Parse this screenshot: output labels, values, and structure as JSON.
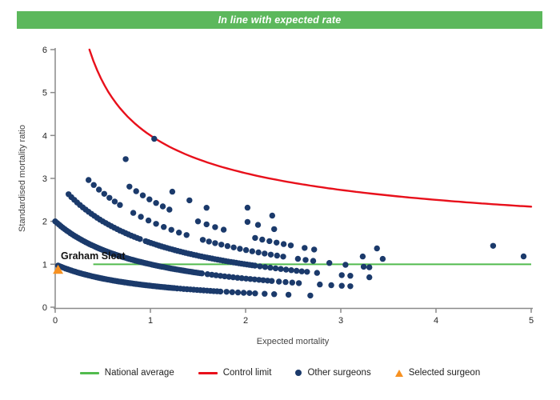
{
  "banner": {
    "text": "In line with expected rate",
    "bg": "#5cb85c",
    "text_color": "#ffffff"
  },
  "colors": {
    "navy_points": "#1b3a6b",
    "control_limit_red": "#e8101b",
    "national_average_green": "#52bb4e",
    "banner_green": "#5cb85c",
    "selected_orange": "#f79121",
    "axis_gray": "#8a8a8a"
  },
  "legend": {
    "items": [
      {
        "label": "National average",
        "type": "line",
        "color": "#52bb4e"
      },
      {
        "label": "Control limit",
        "type": "line",
        "color": "#e8101b"
      },
      {
        "label": "Other surgeons",
        "type": "dot",
        "color": "#1b3a6b"
      },
      {
        "label": "Selected surgeon",
        "type": "triangle",
        "color": "#f79121"
      }
    ]
  },
  "chart_data": {
    "type": "scatter",
    "title": "In line with expected rate",
    "xlabel": "Expected mortality",
    "ylabel": "Standardised mortality ratio",
    "xlim": [
      0,
      5
    ],
    "ylim": [
      0,
      6
    ],
    "xticks": [
      0,
      1,
      2,
      3,
      4,
      5
    ],
    "yticks": [
      0,
      1,
      2,
      3,
      4,
      5,
      6
    ],
    "grid": false,
    "legend_position": "bottom",
    "national_average": {
      "y": 1,
      "x_start": 0.4,
      "x_end": 5
    },
    "control_limit": {
      "formula": "y = 1 + 3/sqrt(x)",
      "offset": 1,
      "coefficient": 3,
      "x_start": 0.36,
      "x_end": 5
    },
    "selected_surgeon": {
      "label": "Graham Sleat",
      "x": 0.03,
      "y": 0.88
    },
    "band_formula": "y = deaths / (1 + x)",
    "point_radius": 3.7,
    "surgeon_bands": [
      {
        "deaths": 1,
        "runs": [
          {
            "from": 0.03,
            "to": 1.25,
            "step": 0.02
          },
          {
            "from": 1.28,
            "to": 1.75,
            "step": 0.035
          },
          {
            "from": 1.8,
            "to": 2.1,
            "step": 0.06
          }
        ],
        "extra": [
          2.2,
          2.3,
          2.45,
          2.68
        ]
      },
      {
        "deaths": 2,
        "runs": [
          {
            "from": 0.0,
            "to": 1.55,
            "step": 0.02
          },
          {
            "from": 1.6,
            "to": 2.3,
            "step": 0.045
          },
          {
            "from": 2.35,
            "to": 2.6,
            "step": 0.07
          }
        ],
        "extra": [
          2.78,
          2.9,
          3.01,
          3.1
        ]
      },
      {
        "deaths": 3,
        "runs": [
          {
            "from": 0.14,
            "to": 0.9,
            "step": 0.03
          },
          {
            "from": 0.95,
            "to": 2.1,
            "step": 0.028
          },
          {
            "from": 2.15,
            "to": 2.65,
            "step": 0.055
          }
        ],
        "extra": [
          2.75,
          3.01,
          3.1,
          3.3
        ]
      },
      {
        "deaths": 4,
        "runs": [
          {
            "from": 0.35,
            "to": 0.68,
            "step": 0.055
          },
          {
            "from": 0.82,
            "to": 1.45,
            "step": 0.08
          },
          {
            "from": 1.55,
            "to": 2.45,
            "step": 0.065
          },
          {
            "from": 2.55,
            "to": 2.72,
            "step": 0.08
          }
        ],
        "extra": [
          2.88,
          3.05,
          3.24,
          3.3
        ]
      },
      {
        "deaths": 5,
        "runs": [
          {
            "from": 0.78,
            "to": 1.2,
            "step": 0.07
          },
          {
            "from": 1.5,
            "to": 1.8,
            "step": 0.09
          },
          {
            "from": 2.1,
            "to": 2.5,
            "step": 0.075
          }
        ],
        "extra": [
          2.62,
          2.72,
          3.23,
          3.44
        ]
      },
      {
        "deaths": 6,
        "runs": [
          {
            "from": 1.23,
            "to": 1.62,
            "step": 0.18
          }
        ],
        "extra": [
          0.74,
          2.02,
          2.13,
          2.3,
          3.38
        ]
      },
      {
        "deaths": 7,
        "runs": [],
        "extra": [
          2.02,
          2.28,
          4.92
        ]
      },
      {
        "deaths": 8,
        "runs": [],
        "extra": [
          1.04,
          4.6
        ]
      }
    ]
  }
}
